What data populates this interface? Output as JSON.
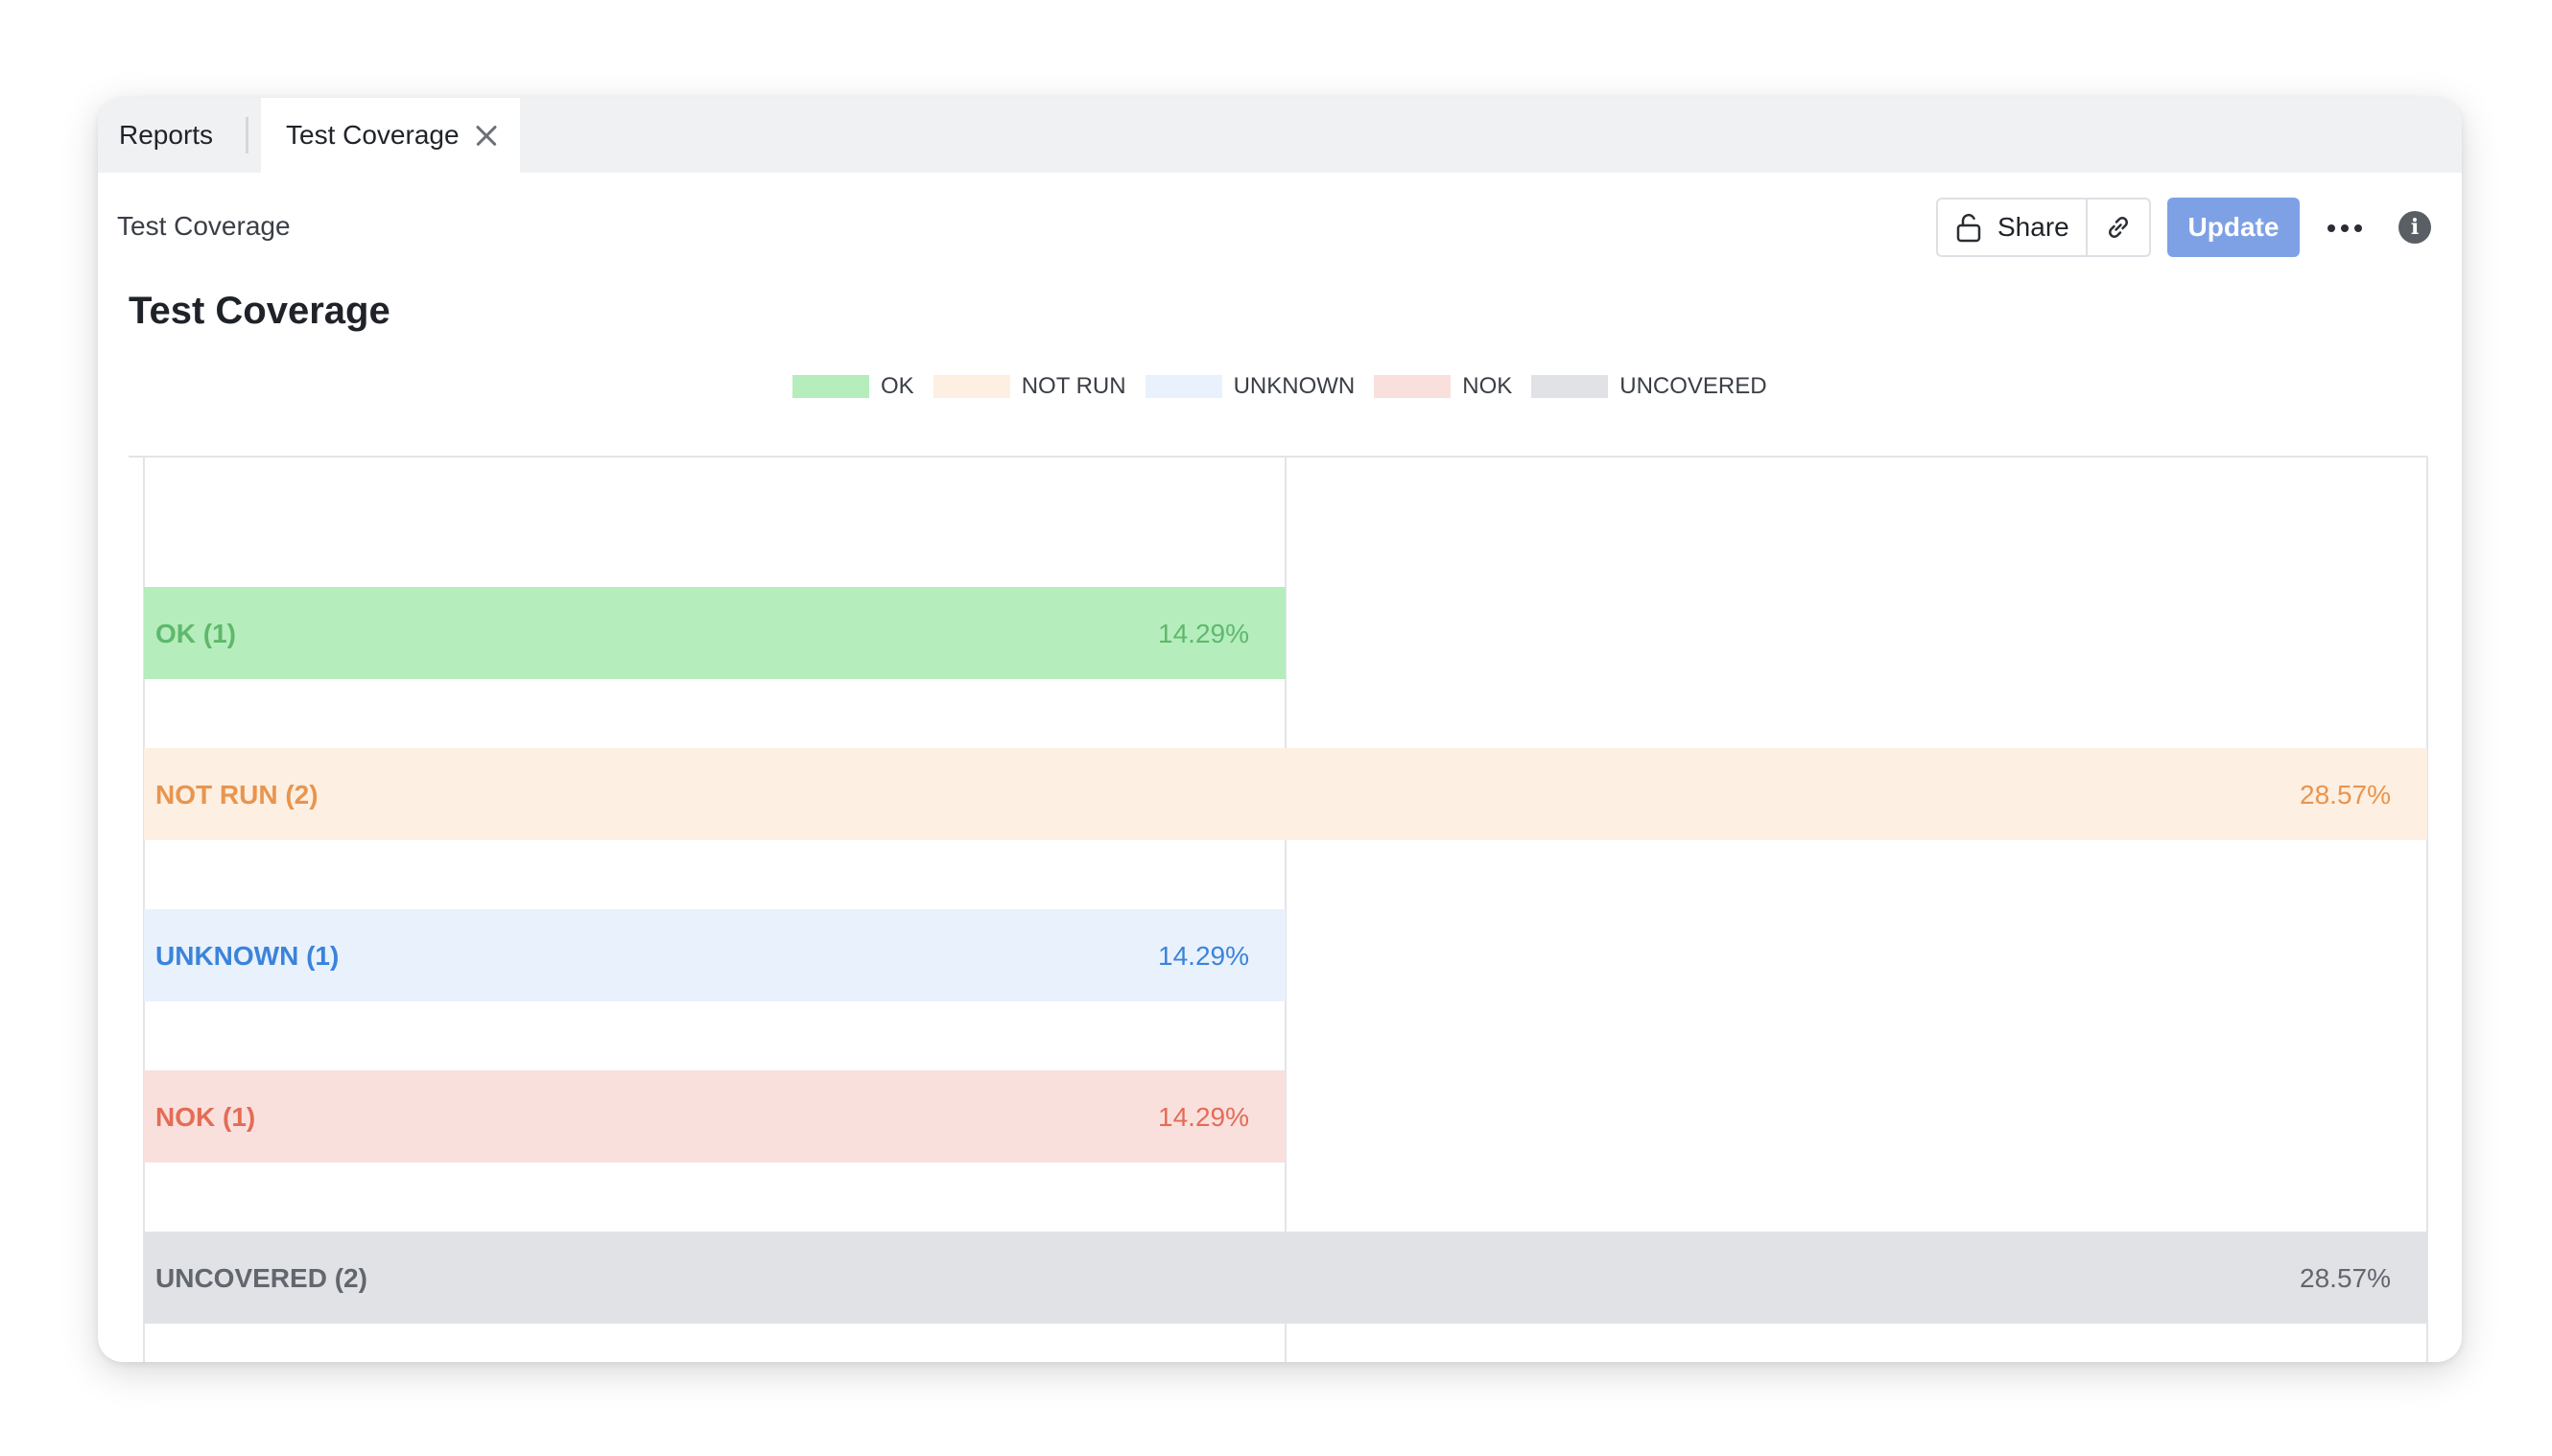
{
  "tabs": [
    {
      "label": "Reports"
    },
    {
      "label": "Test Coverage",
      "active": true
    }
  ],
  "breadcrumb": "Test Coverage",
  "toolbar": {
    "share_label": "Share",
    "update_label": "Update"
  },
  "icons": {
    "share": "unlock-icon",
    "link": "link-icon",
    "more": "more-horizontal-icon",
    "info": "info-icon",
    "close": "close-icon"
  },
  "chart_data": {
    "type": "bar",
    "orientation": "horizontal",
    "title": "Test Coverage",
    "xlabel": "",
    "ylabel": "",
    "xlim": [
      0,
      2
    ],
    "grid": true,
    "legend_position": "top-center",
    "legend": [
      "OK",
      "NOT RUN",
      "UNKNOWN",
      "NOK",
      "UNCOVERED"
    ],
    "categories": [
      "OK",
      "NOT RUN",
      "UNKNOWN",
      "NOK",
      "UNCOVERED"
    ],
    "values": [
      1,
      2,
      1,
      1,
      2
    ],
    "bar_labels": [
      "OK (1)",
      "NOT RUN (2)",
      "UNKNOWN (1)",
      "NOK (1)",
      "UNCOVERED (2)"
    ],
    "percentages": [
      "14.29%",
      "28.57%",
      "14.29%",
      "14.29%",
      "28.57%"
    ],
    "colors": {
      "fill": [
        "#b5edbd",
        "#fdefe1",
        "#e9f1fd",
        "#f9e0dd",
        "#e0e2e6"
      ],
      "text": [
        "#5fb86c",
        "#e8954f",
        "#3a84da",
        "#e46c55",
        "#62666d"
      ]
    }
  }
}
